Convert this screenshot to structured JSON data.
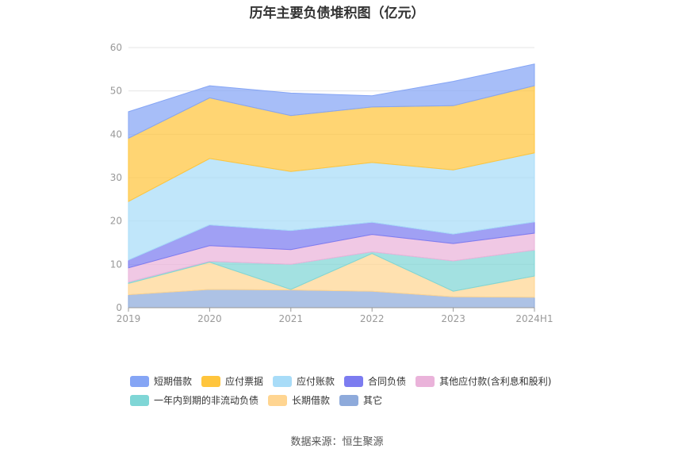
{
  "title": "历年主要负债堆积图（亿元）",
  "source": "数据来源：恒生聚源",
  "chart_data": {
    "type": "area",
    "stacked": true,
    "categories": [
      "2019",
      "2020",
      "2021",
      "2022",
      "2023",
      "2024H1"
    ],
    "ylim": [
      0,
      60
    ],
    "yticks": [
      0,
      10,
      20,
      30,
      40,
      50,
      60
    ],
    "grid": true,
    "legend_position": "bottom",
    "series": [
      {
        "name": "其它",
        "color": "#8eaadb",
        "values": [
          3.0,
          4.2,
          4.1,
          3.8,
          2.5,
          2.4
        ]
      },
      {
        "name": "长期借款",
        "color": "#ffd591",
        "values": [
          2.6,
          6.3,
          0.1,
          8.7,
          1.3,
          4.9
        ]
      },
      {
        "name": "一年内到期的非流动负债",
        "color": "#7fd6d6",
        "values": [
          0.3,
          0.2,
          5.8,
          0.4,
          7.0,
          6.0
        ]
      },
      {
        "name": "其他应付款(含利息和股利)",
        "color": "#eab3da",
        "values": [
          3.3,
          3.6,
          3.4,
          4.0,
          4.0,
          3.9
        ]
      },
      {
        "name": "合同负债",
        "color": "#7c7cf0",
        "values": [
          1.8,
          4.8,
          4.4,
          2.8,
          2.2,
          2.6
        ]
      },
      {
        "name": "应付账款",
        "color": "#a8dcf8",
        "values": [
          13.5,
          15.3,
          13.6,
          13.8,
          14.8,
          15.9
        ]
      },
      {
        "name": "应付票据",
        "color": "#ffc53d",
        "values": [
          14.6,
          14.0,
          12.9,
          12.8,
          14.8,
          15.5
        ]
      },
      {
        "name": "短期借款",
        "color": "#85a5f5",
        "values": [
          6.1,
          2.8,
          5.2,
          2.6,
          5.6,
          5.0
        ]
      }
    ],
    "legend_rows": [
      [
        "短期借款",
        "应付票据",
        "应付账款",
        "合同负债",
        "其他应付款(含利息和股利)"
      ],
      [
        "一年内到期的非流动负债",
        "长期借款",
        "其它"
      ]
    ]
  }
}
